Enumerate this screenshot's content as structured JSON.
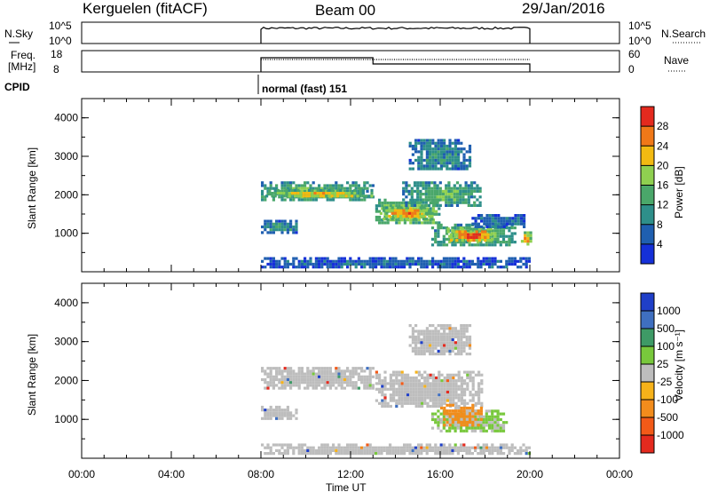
{
  "header": {
    "station": "Kerguelen (fitACF)",
    "beam": "Beam 00",
    "date": "29/Jan/2016"
  },
  "nsky_panel": {
    "left_label": "N.Sky",
    "right_label": "N.Search",
    "left_ticks": [
      "10^5",
      "10^0"
    ],
    "right_ticks": [
      "10^5",
      "10^0"
    ]
  },
  "freq_panel": {
    "left_label_line1": "Freq.",
    "left_label_line2": "[MHz]",
    "right_label": "Nave",
    "left_ticks": [
      "18",
      "8"
    ],
    "right_ticks": [
      "60",
      "0"
    ]
  },
  "cpid": {
    "label": "CPID",
    "value": "normal (fast) 151"
  },
  "colors": {
    "power": [
      "#1530d8",
      "#1f5fb0",
      "#2e8f8a",
      "#4aa76a",
      "#8fd050",
      "#f2ba12",
      "#f07818",
      "#e42a1e"
    ],
    "velocity": [
      "#e42a1e",
      "#f25a18",
      "#f28c1c",
      "#f6b21a",
      "#bdbdbd",
      "#78c83c",
      "#3e9a66",
      "#3f6fc0",
      "#1f3fc8"
    ],
    "grey": "#bdbdbd"
  },
  "chart_data": [
    {
      "type": "heatmap",
      "name": "power",
      "ylabel": "Slant Range [km]",
      "yticks": [
        "1000",
        "2000",
        "3000",
        "4000"
      ],
      "ylim": [
        0,
        4500
      ],
      "xlim": [
        0,
        24
      ],
      "colorbar": {
        "label": "Power [dB]",
        "ticks": [
          "4",
          "8",
          "12",
          "16",
          "20",
          "24",
          "28"
        ],
        "range": [
          0,
          32
        ]
      },
      "echo_regions": [
        {
          "t0": 8.0,
          "t1": 13.0,
          "r0": 1850,
          "r1": 2350,
          "level": 0.48
        },
        {
          "t0": 8.2,
          "t1": 13.0,
          "r0": 1950,
          "r1": 2150,
          "level": 0.7
        },
        {
          "t0": 8.0,
          "t1": 9.6,
          "r0": 1050,
          "r1": 1350,
          "level": 0.32
        },
        {
          "t0": 13.1,
          "t1": 16.0,
          "r0": 1250,
          "r1": 1900,
          "level": 0.62
        },
        {
          "t0": 13.3,
          "t1": 15.6,
          "r0": 1400,
          "r1": 1700,
          "level": 0.85
        },
        {
          "t0": 14.3,
          "t1": 17.8,
          "r0": 1700,
          "r1": 2350,
          "level": 0.45
        },
        {
          "t0": 15.6,
          "t1": 19.4,
          "r0": 700,
          "r1": 1250,
          "level": 0.55
        },
        {
          "t0": 16.3,
          "t1": 18.3,
          "r0": 800,
          "r1": 1150,
          "level": 0.92
        },
        {
          "t0": 17.4,
          "t1": 19.8,
          "r0": 1200,
          "r1": 1500,
          "level": 0.22
        },
        {
          "t0": 14.6,
          "t1": 17.3,
          "r0": 2650,
          "r1": 3450,
          "level": 0.3
        },
        {
          "t0": 8.0,
          "t1": 20.0,
          "r0": 120,
          "r1": 380,
          "level": 0.15
        },
        {
          "t0": 19.6,
          "t1": 20.0,
          "r0": 700,
          "r1": 1050,
          "level": 0.8
        }
      ]
    },
    {
      "type": "heatmap",
      "name": "velocity",
      "ylabel": "Slant Range [km]",
      "yticks": [
        "1000",
        "2000",
        "3000",
        "4000"
      ],
      "ylim": [
        0,
        4500
      ],
      "xlabel": "Time UT",
      "xticks": [
        "00:00",
        "04:00",
        "08:00",
        "12:00",
        "16:00",
        "20:00",
        "00:00"
      ],
      "xlim": [
        0,
        24
      ],
      "colorbar": {
        "label": "Velocity [m s⁻¹]",
        "ticks": [
          "-1000",
          "-500",
          "-100",
          "-25",
          "25",
          "100",
          "500",
          "1000"
        ]
      },
      "echo_regions": [
        {
          "t0": 8.0,
          "t1": 13.0,
          "r0": 1800,
          "r1": 2350,
          "class": "grey"
        },
        {
          "t0": 8.0,
          "t1": 9.6,
          "r0": 1050,
          "r1": 1350,
          "class": "grey"
        },
        {
          "t0": 13.1,
          "t1": 17.8,
          "r0": 1300,
          "r1": 2250,
          "class": "grey"
        },
        {
          "t0": 15.6,
          "t1": 19.0,
          "r0": 700,
          "r1": 1250,
          "class": "green"
        },
        {
          "t0": 16.0,
          "t1": 17.8,
          "r0": 850,
          "r1": 1400,
          "class": "orange"
        },
        {
          "t0": 14.6,
          "t1": 17.3,
          "r0": 2650,
          "r1": 3450,
          "class": "grey"
        },
        {
          "t0": 8.0,
          "t1": 20.0,
          "r0": 120,
          "r1": 380,
          "class": "grey"
        }
      ]
    }
  ]
}
